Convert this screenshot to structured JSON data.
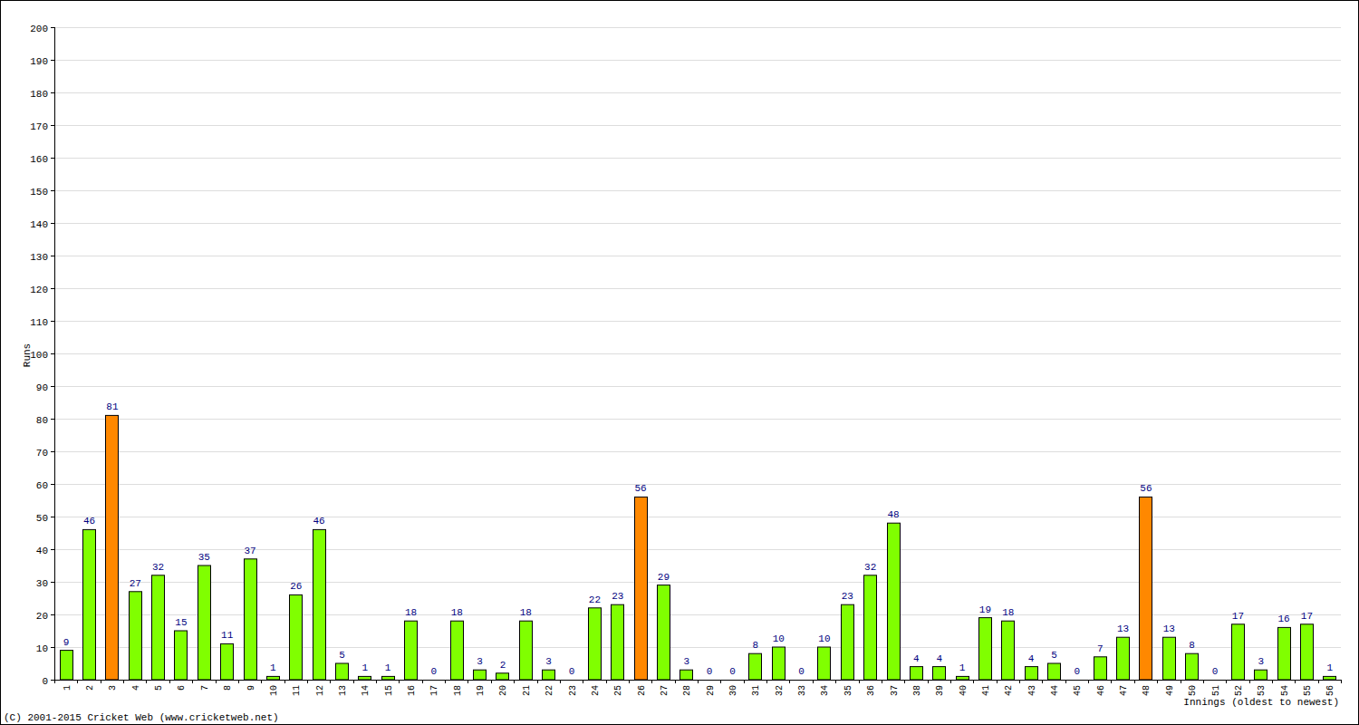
{
  "chart_data": {
    "type": "bar",
    "x_label": "Innings (oldest to newest)",
    "y_label": "Runs",
    "annotations": [
      "(C) 2001-2015 Cricket Web (www.cricketweb.net)"
    ],
    "categories": [
      "1",
      "2",
      "3",
      "4",
      "5",
      "6",
      "7",
      "8",
      "9",
      "10",
      "11",
      "12",
      "13",
      "14",
      "15",
      "16",
      "17",
      "18",
      "19",
      "20",
      "21",
      "22",
      "23",
      "24",
      "25",
      "26",
      "27",
      "28",
      "29",
      "30",
      "31",
      "32",
      "33",
      "34",
      "35",
      "36",
      "37",
      "38",
      "39",
      "40",
      "41",
      "42",
      "43",
      "44",
      "45",
      "46",
      "47",
      "48",
      "49",
      "50",
      "51",
      "52",
      "53",
      "54",
      "55",
      "56"
    ],
    "values": [
      9,
      46,
      81,
      27,
      32,
      15,
      35,
      11,
      37,
      1,
      26,
      46,
      5,
      1,
      1,
      18,
      0,
      18,
      3,
      2,
      18,
      3,
      0,
      22,
      23,
      56,
      29,
      3,
      0,
      0,
      8,
      10,
      0,
      10,
      23,
      32,
      48,
      4,
      4,
      1,
      19,
      18,
      4,
      5,
      0,
      7,
      13,
      56,
      13,
      8,
      0,
      17,
      3,
      16,
      17,
      1
    ],
    "colors": [
      "#80ff00",
      "#80ff00",
      "#ff8800",
      "#80ff00",
      "#80ff00",
      "#80ff00",
      "#80ff00",
      "#80ff00",
      "#80ff00",
      "#80ff00",
      "#80ff00",
      "#80ff00",
      "#80ff00",
      "#80ff00",
      "#80ff00",
      "#80ff00",
      "#80ff00",
      "#80ff00",
      "#80ff00",
      "#80ff00",
      "#80ff00",
      "#80ff00",
      "#80ff00",
      "#80ff00",
      "#80ff00",
      "#ff8800",
      "#80ff00",
      "#80ff00",
      "#80ff00",
      "#80ff00",
      "#80ff00",
      "#80ff00",
      "#80ff00",
      "#80ff00",
      "#80ff00",
      "#80ff00",
      "#80ff00",
      "#80ff00",
      "#80ff00",
      "#80ff00",
      "#80ff00",
      "#80ff00",
      "#80ff00",
      "#80ff00",
      "#80ff00",
      "#80ff00",
      "#80ff00",
      "#ff8800",
      "#80ff00",
      "#80ff00",
      "#80ff00",
      "#80ff00",
      "#80ff00",
      "#80ff00",
      "#80ff00",
      "#80ff00"
    ],
    "ylim": [
      0,
      200
    ],
    "yticks": [
      0,
      10,
      20,
      30,
      40,
      50,
      60,
      70,
      80,
      90,
      100,
      110,
      120,
      130,
      140,
      150,
      160,
      170,
      180,
      190,
      200
    ],
    "grid": true,
    "data_labels": true
  }
}
